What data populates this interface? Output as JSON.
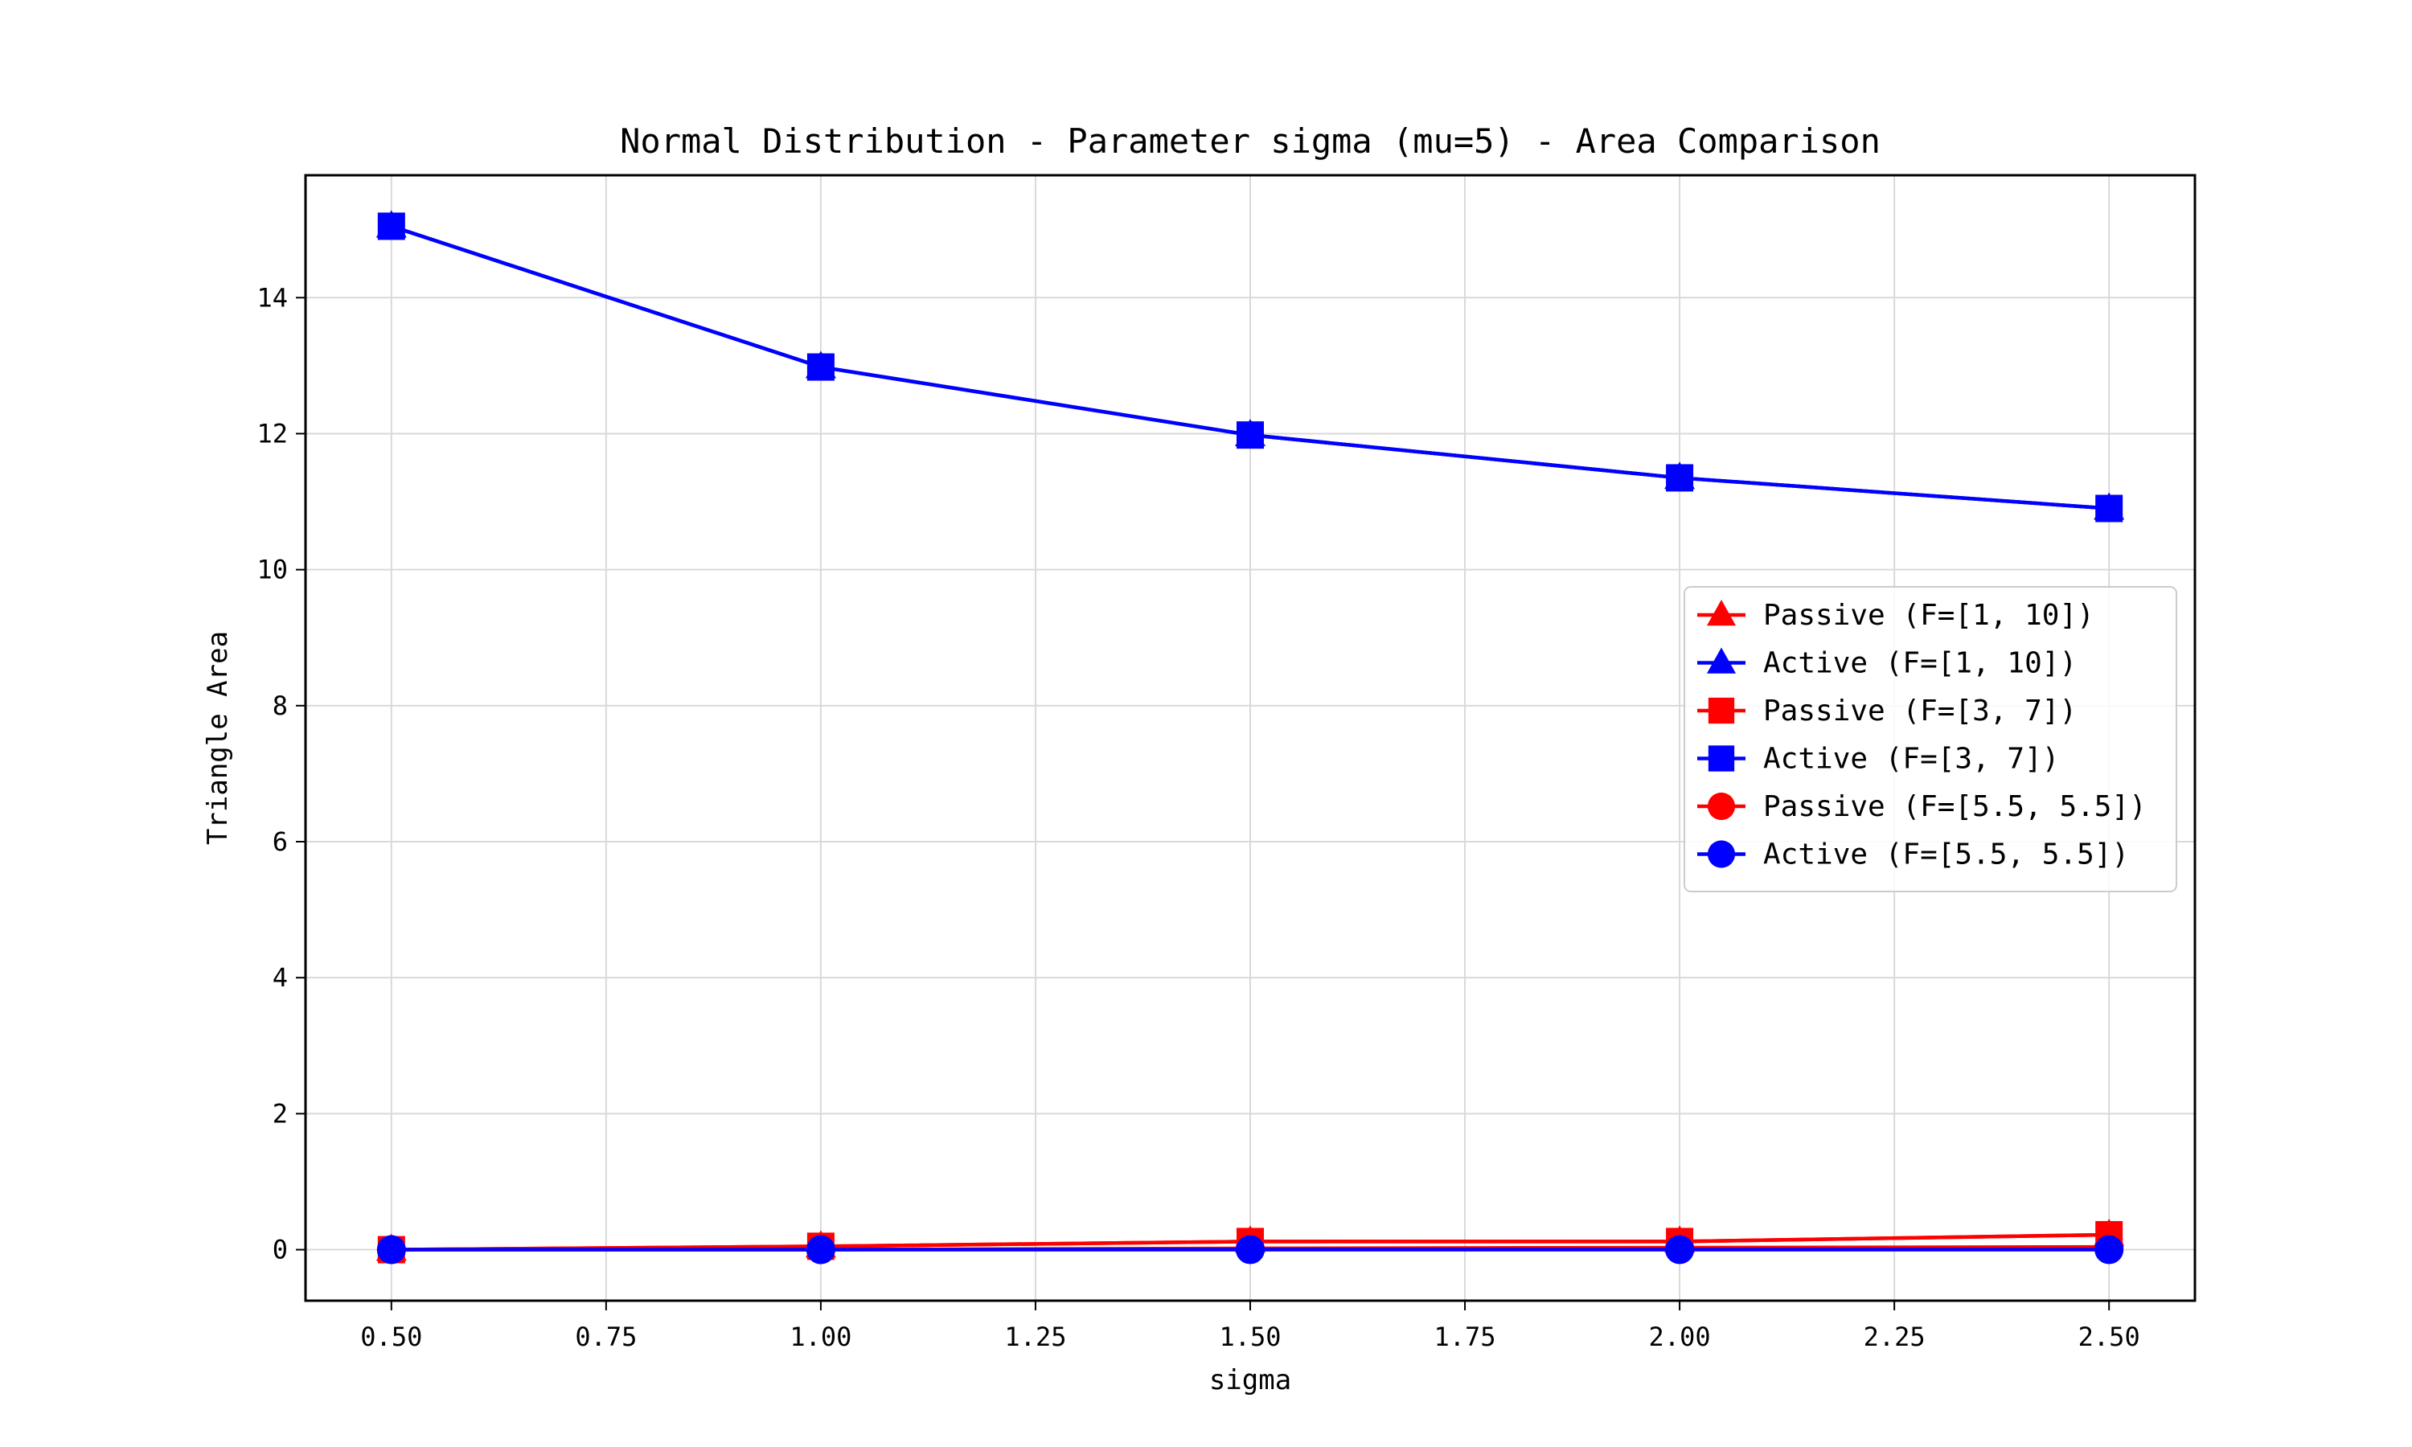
{
  "chart_data": {
    "type": "line",
    "title": "Normal Distribution - Parameter sigma (mu=5) - Area Comparison",
    "xlabel": "sigma",
    "ylabel": "Triangle Area",
    "x": [
      0.5,
      1.0,
      1.5,
      2.0,
      2.5
    ],
    "xlim": [
      0.4,
      2.6
    ],
    "ylim": [
      -0.75,
      15.8
    ],
    "xticks": [
      "0.50",
      "0.75",
      "1.00",
      "1.25",
      "1.50",
      "1.75",
      "2.00",
      "2.25",
      "2.50"
    ],
    "yticks": [
      "0",
      "2",
      "4",
      "6",
      "8",
      "10",
      "12",
      "14"
    ],
    "grid": true,
    "legend_position": "center-right",
    "series": [
      {
        "name": "Passive (F=[1, 10])",
        "color": "#ff0000",
        "marker": "triangle",
        "values": [
          0.0,
          0.05,
          0.12,
          0.12,
          0.22
        ]
      },
      {
        "name": "Active (F=[1, 10])",
        "color": "#0000ff",
        "marker": "triangle",
        "values": [
          15.05,
          12.98,
          11.98,
          11.35,
          10.9
        ]
      },
      {
        "name": "Passive (F=[3, 7])",
        "color": "#ff0000",
        "marker": "square",
        "values": [
          0.0,
          0.05,
          0.12,
          0.12,
          0.22
        ]
      },
      {
        "name": "Active (F=[3, 7])",
        "color": "#0000ff",
        "marker": "square",
        "values": [
          15.05,
          12.98,
          11.98,
          11.35,
          10.9
        ]
      },
      {
        "name": "Passive (F=[5.5, 5.5])",
        "color": "#ff0000",
        "marker": "circle",
        "values": [
          0.0,
          0.0,
          0.02,
          0.03,
          0.04
        ]
      },
      {
        "name": "Active (F=[5.5, 5.5])",
        "color": "#0000ff",
        "marker": "circle",
        "values": [
          0.0,
          0.0,
          0.0,
          0.0,
          0.0
        ]
      }
    ]
  }
}
